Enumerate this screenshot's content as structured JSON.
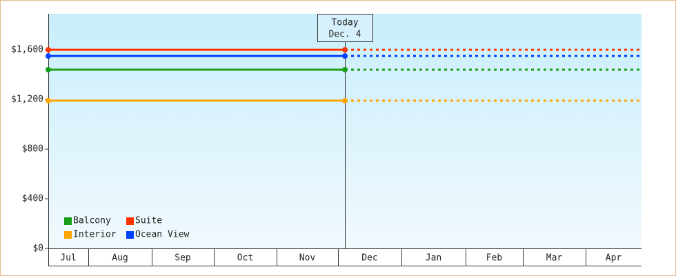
{
  "chart_data": {
    "type": "line",
    "annotation": [
      "Today",
      "Dec. 4"
    ],
    "categories": [
      "Jul",
      "Aug",
      "Sep",
      "Oct",
      "Nov",
      "Dec",
      "Jan",
      "Feb",
      "Mar",
      "Apr"
    ],
    "series": [
      {
        "name": "Balcony",
        "color": "#17a017",
        "value": 1440
      },
      {
        "name": "Suite",
        "color": "#ff3300",
        "value": 1600
      },
      {
        "name": "Interior",
        "color": "#ffa500",
        "value": 1190
      },
      {
        "name": "Ocean View",
        "color": "#0040ff",
        "value": 1550
      }
    ],
    "ylim": [
      0,
      1890
    ],
    "yticks": [
      {
        "value": 0,
        "label": "$0"
      },
      {
        "value": 400,
        "label": "$400"
      },
      {
        "value": 800,
        "label": "$800"
      },
      {
        "value": 1200,
        "label": "$1,200"
      },
      {
        "value": 1600,
        "label": "$1,600"
      }
    ],
    "legend": "lower left"
  }
}
